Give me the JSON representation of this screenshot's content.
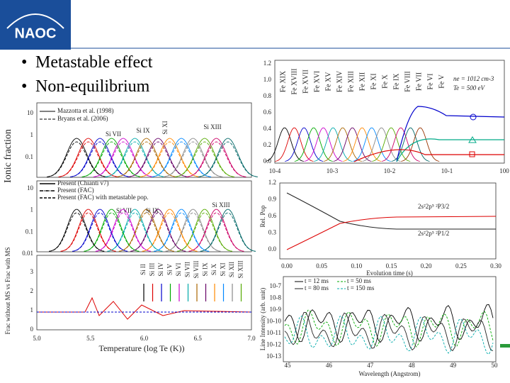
{
  "header": {
    "logo": "NAOC"
  },
  "bullets": [
    "Metastable effect",
    "Non-equilibrium"
  ],
  "left_figure": {
    "panel1": {
      "ylabel": "Ionic fraction",
      "yticks": [
        "10",
        "1",
        "0.1"
      ],
      "legend": [
        "Mazzotta et al. (1998)",
        "Bryans et al. (2006)"
      ],
      "ion_labels": [
        "Si VII",
        "Si IX",
        "Si XI",
        "Si XIII"
      ]
    },
    "panel2": {
      "yticks": [
        "10",
        "1",
        "0.1",
        "0.01"
      ],
      "legend": [
        "Present (Chianti v7)",
        "Present (FAC)",
        "Present (FAC) with metastable pop."
      ],
      "ion_labels": [
        "Si VII",
        "Si IX",
        "Si XIII"
      ]
    },
    "panel3": {
      "ylabel": "Frac without MS vs Frac with MS",
      "yticks": [
        "3",
        "2",
        "1",
        "0"
      ],
      "ion_labels": [
        "Si II",
        "Si III",
        "Si IV",
        "Si V",
        "Si VI",
        "Si VII",
        "Si VIII",
        "Si IX",
        "Si X",
        "Si XI",
        "Si XII",
        "Si XIII"
      ]
    },
    "xticks": [
      "5.0",
      "5.5",
      "6.0",
      "6.5",
      "7.0"
    ],
    "xlabel": "Temperature (log Te (K))"
  },
  "top_right": {
    "yticks": [
      "1.2",
      "1.0",
      "0.8",
      "0.6",
      "0.4",
      "0.2",
      "0.0"
    ],
    "xticks": [
      "10-4",
      "10-3",
      "10-2",
      "10-1",
      "100"
    ],
    "ion_labels": [
      "Fe XIX",
      "Fe XVIII",
      "Fe XVII",
      "Fe XVI",
      "Fe XV",
      "Fe XIV",
      "Fe XIII",
      "Fe XII",
      "Fe XI",
      "Fe X",
      "Fe IX",
      "Fe VIII",
      "Fe VII",
      "Fe VI",
      "Fe V"
    ],
    "params": [
      "ne = 1012 cm-3",
      "Te = 500 eV"
    ]
  },
  "mid_right": {
    "ylabel": "Rel. Pop",
    "yticks": [
      "1.2",
      "0.9",
      "0.6",
      "0.3",
      "0.0"
    ],
    "xticks": [
      "0.00",
      "0.05",
      "0.10",
      "0.15",
      "0.20",
      "0.25",
      "0.30"
    ],
    "xlabel": "Evolution time (s)",
    "labels": [
      "2s²2p⁵ ²P3/2",
      "2s²2p⁵ ²P1/2"
    ]
  },
  "bottom_right": {
    "ylabel": "Line Intensity (arb. unit)",
    "yticks": [
      "10-7",
      "10-8",
      "10-9",
      "10-10",
      "10-11",
      "10-12",
      "10-13"
    ],
    "xticks": [
      "45",
      "46",
      "47",
      "48",
      "49",
      "50"
    ],
    "xlabel": "Wavelength (Angstrom)",
    "legend": [
      "t = 12 ms",
      "t = 50 ms",
      "t = 80 ms",
      "t = 150 ms"
    ]
  }
}
